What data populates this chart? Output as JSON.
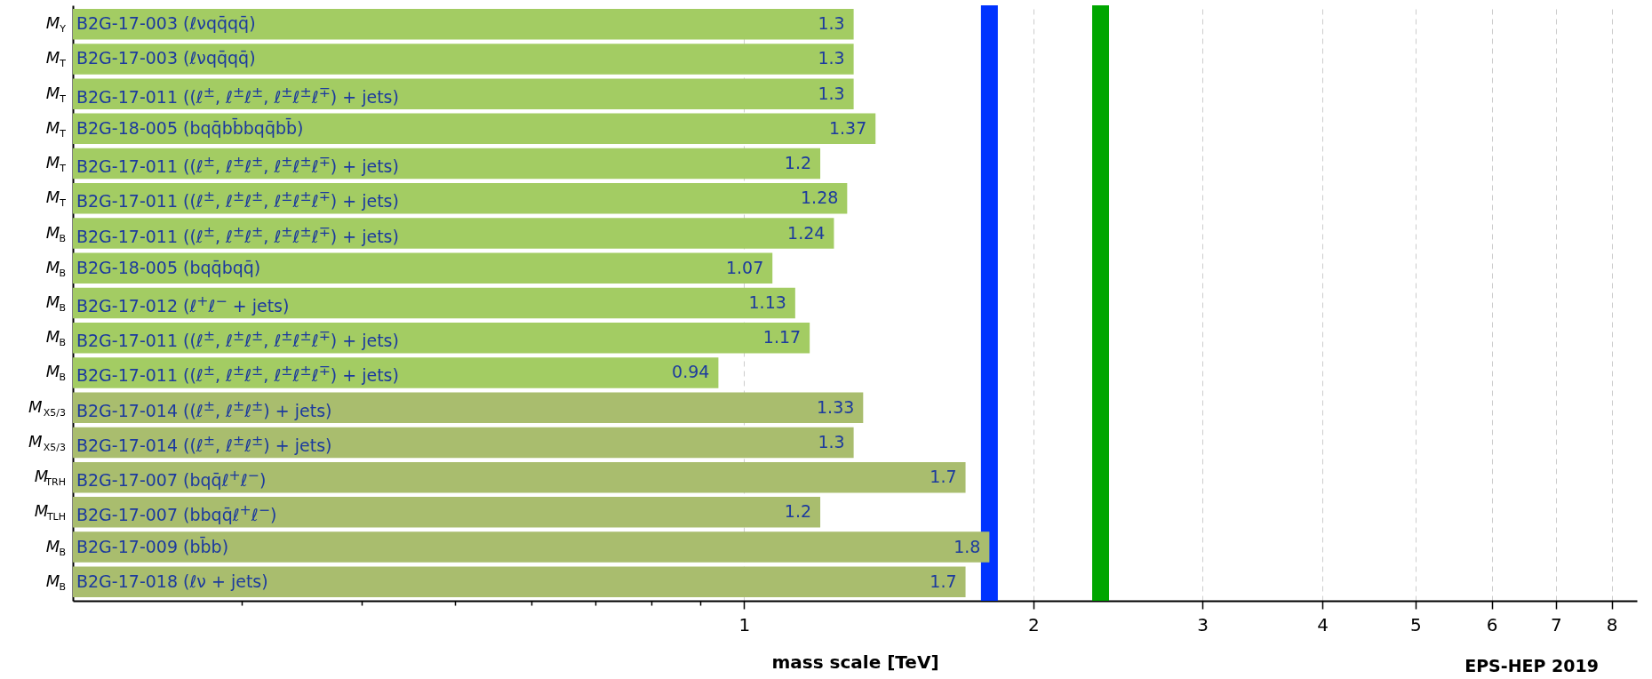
{
  "chart_data": {
    "type": "bar",
    "orientation": "horizontal",
    "log": "x",
    "xlabel": "mass scale [TeV]",
    "categories": [
      "M$_{Y}$",
      "M$_{T}$",
      "M$_{T}$",
      "M$_{T}$",
      "M$_{T}$",
      "M$_{T}$",
      "M$_{B}$",
      "M$_{B}$",
      "M$_{B}$",
      "M$_{B}$",
      "M$_{B}$",
      "M$_{X5/3}$",
      "M$_{X5/3}$",
      "M$_{TRH}$",
      "M$_{TLH}$",
      "M$_{B}$",
      "M$_{B}$"
    ],
    "values": [
      1.3,
      1.3,
      1.3,
      1.37,
      1.2,
      1.28,
      1.24,
      1.07,
      1.13,
      1.17,
      0.94,
      1.33,
      1.3,
      1.7,
      1.2,
      1.8,
      1.7
    ],
    "colors": [
      "#a3cc63",
      "#a3cc63",
      "#a3cc63",
      "#a3cc63",
      "#a3cc63",
      "#a3cc63",
      "#a3cc63",
      "#a3cc63",
      "#a3cc63",
      "#a3cc63",
      "#a3cc63",
      "#a9bd6e",
      "#a9bd6e",
      "#a9bd6e",
      "#a9bd6e",
      "#a9bd6e",
      "#a9bd6e"
    ],
    "data_labels": true,
    "xlim": [
      0.2,
      8.5
    ],
    "xticks": [
      {
        "value": 0.3,
        "label": null
      },
      {
        "value": 0.4,
        "label": null
      },
      {
        "value": 0.5,
        "label": null
      },
      {
        "value": 0.6,
        "label": null
      },
      {
        "value": 0.7,
        "label": null
      },
      {
        "value": 0.8,
        "label": null
      },
      {
        "value": 0.9,
        "label": null
      },
      1,
      2,
      3,
      4,
      5,
      6,
      7,
      8
    ],
    "grid": "x",
    "ref_lines": [
      {
        "axis": "x",
        "value": 1.8,
        "color": "#0033ff"
      },
      {
        "axis": "x",
        "value": 2.35,
        "color": "#00a600"
      }
    ],
    "annotations": [
      "B2G-17-003 (ℓνqq̄qq̄)",
      "B2G-17-003 (ℓνqq̄qq̄)",
      "B2G-17-011 ((ℓ$^{±}$, ℓ$^{±}$ℓ$^{±}$, ℓ$^{±}$ℓ$^{±}$ℓ$^{∓}$) + jets)",
      "B2G-18-005 (bqq̄bb̄bqq̄bb̄)",
      "B2G-17-011 ((ℓ$^{±}$, ℓ$^{±}$ℓ$^{±}$, ℓ$^{±}$ℓ$^{±}$ℓ$^{∓}$) + jets)",
      "B2G-17-011 ((ℓ$^{±}$, ℓ$^{±}$ℓ$^{±}$, ℓ$^{±}$ℓ$^{±}$ℓ$^{∓}$) + jets)",
      "B2G-17-011 ((ℓ$^{±}$, ℓ$^{±}$ℓ$^{±}$, ℓ$^{±}$ℓ$^{±}$ℓ$^{∓}$) + jets)",
      "B2G-18-005 (bqq̄bqq̄)",
      "B2G-17-012 (ℓ$^{+}$ℓ$^{−}$ + jets)",
      "B2G-17-011 ((ℓ$^{±}$, ℓ$^{±}$ℓ$^{±}$, ℓ$^{±}$ℓ$^{±}$ℓ$^{∓}$) + jets)",
      "B2G-17-011 ((ℓ$^{±}$, ℓ$^{±}$ℓ$^{±}$, ℓ$^{±}$ℓ$^{±}$ℓ$^{∓}$) + jets)",
      "B2G-17-014 ((ℓ$^{±}$, ℓ$^{±}$ℓ$^{±}$) + jets)",
      "B2G-17-014 ((ℓ$^{±}$, ℓ$^{±}$ℓ$^{±}$) + jets)",
      "B2G-17-007 (bqq̄ℓ$^{+}$ℓ$^{−}$)",
      "B2G-17-007 (bbqq̄ℓ$^{+}$ℓ$^{−}$)",
      "B2G-17-009 (bb̄b)",
      "B2G-17-018 (ℓν + jets)",
      "EPS-HEP 2019"
    ]
  }
}
